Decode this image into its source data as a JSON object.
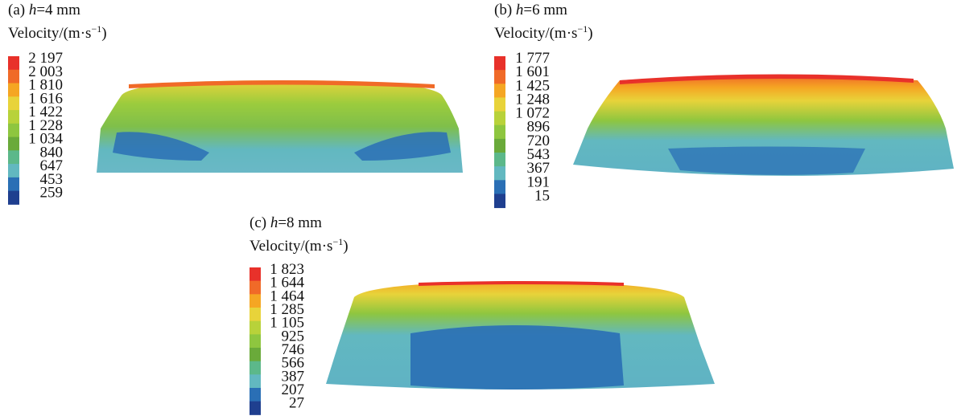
{
  "panels": [
    {
      "label": "(a)",
      "var": "h",
      "value": "=4 mm",
      "unit": "Velocity/(m·s",
      "unit_sup": "−1",
      "unit_end": ")",
      "levels": [
        "2 197",
        "2 003",
        "1 810",
        "1 616",
        "1 422",
        "1 228",
        "1 034",
        "840",
        "647",
        "453",
        "259"
      ]
    },
    {
      "label": "(b)",
      "var": "h",
      "value": "=6 mm",
      "unit": "Velocity/(m·s",
      "unit_sup": "−1",
      "unit_end": ")",
      "levels": [
        "1 777",
        "1 601",
        "1 425",
        "1 248",
        "1 072",
        "896",
        "720",
        "543",
        "367",
        "191",
        "15"
      ]
    },
    {
      "label": "(c)",
      "var": "h",
      "value": "=8 mm",
      "unit": "Velocity/(m·s",
      "unit_sup": "−1",
      "unit_end": ")",
      "levels": [
        "1 823",
        "1 644",
        "1 464",
        "1 285",
        "1 105",
        "925",
        "746",
        "566",
        "387",
        "207",
        "27"
      ]
    }
  ]
}
